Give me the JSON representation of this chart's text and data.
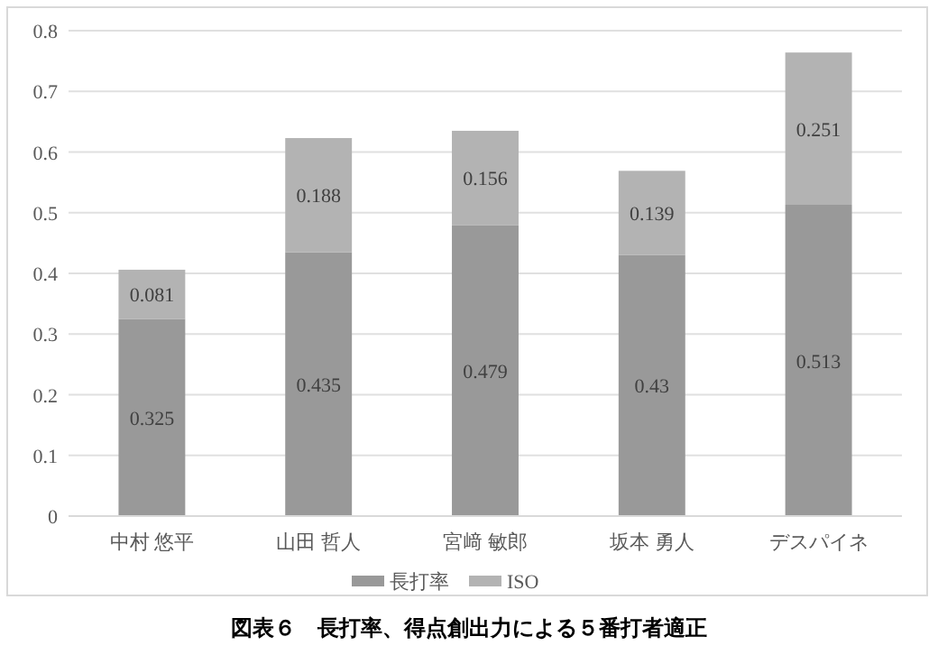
{
  "chart_data": {
    "type": "bar",
    "title": "図表６　長打率、得点創出力による５番打者適正",
    "categories": [
      "中村 悠平",
      "山田 哲人",
      "宮﨑 敏郎",
      "坂本 勇人",
      "デスパイネ"
    ],
    "stacked": true,
    "series": [
      {
        "name": "長打率",
        "color": "#999999",
        "values": [
          0.325,
          0.435,
          0.479,
          0.43,
          0.513
        ]
      },
      {
        "name": "ISO",
        "color": "#b3b3b3",
        "values": [
          0.081,
          0.188,
          0.156,
          0.139,
          0.251
        ]
      }
    ],
    "ylim": [
      0,
      0.8
    ],
    "yticks": [
      0,
      0.1,
      0.2,
      0.3,
      0.4,
      0.5,
      0.6,
      0.7,
      0.8
    ],
    "grid": "y",
    "legend": "bottom",
    "data_labels": true
  }
}
